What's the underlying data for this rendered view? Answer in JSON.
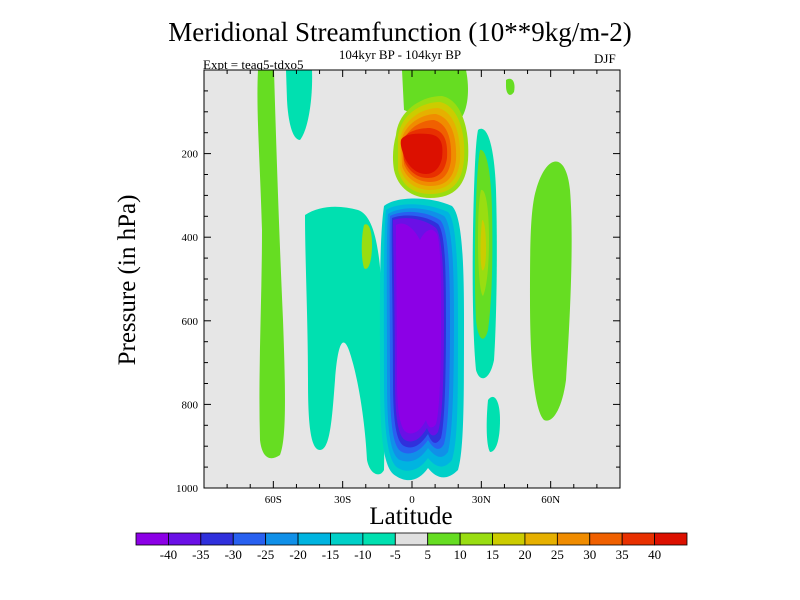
{
  "chart_data": {
    "type": "heatmap",
    "title": "Meridional Streamfunction (10**9kg/m-2)",
    "subtitle": "104kyr BP - 104kyr BP",
    "experiment_label": "Expt = teaq5-tdxo5",
    "season_label": "DJF",
    "xlabel": "Latitude",
    "ylabel": "Pressure (in hPa)",
    "xlim": [
      -90,
      90
    ],
    "ylim": [
      1000,
      0
    ],
    "x_ticks": [
      {
        "value": -60,
        "label": "60S"
      },
      {
        "value": -30,
        "label": "30S"
      },
      {
        "value": 0,
        "label": "0"
      },
      {
        "value": 30,
        "label": "30N"
      },
      {
        "value": 60,
        "label": "60N"
      }
    ],
    "y_ticks": [
      {
        "value": 200,
        "label": "200"
      },
      {
        "value": 400,
        "label": "400"
      },
      {
        "value": 600,
        "label": "600"
      },
      {
        "value": 800,
        "label": "800"
      },
      {
        "value": 1000,
        "label": "1000"
      }
    ],
    "colorbar": {
      "labels": [
        "-40",
        "-35",
        "-30",
        "-25",
        "-20",
        "-15",
        "-10",
        "-5",
        "5",
        "10",
        "15",
        "20",
        "25",
        "30",
        "35",
        "40"
      ],
      "colors": [
        "#8c00e6",
        "#6a10e6",
        "#3030dc",
        "#2860f0",
        "#1090e8",
        "#00b4e0",
        "#00d0c8",
        "#00e0b0",
        "#e0e0e0",
        "#66dd22",
        "#99dd11",
        "#cccc00",
        "#e6b000",
        "#f08c00",
        "#f06000",
        "#e83000",
        "#dc1000"
      ]
    },
    "regions": [
      {
        "name": "mid-high-sh-positive",
        "level": 5,
        "lat_range": [
          -66,
          -54
        ],
        "p_range": [
          0,
          960
        ]
      },
      {
        "name": "sh-subtropical-negative",
        "level": -10,
        "lat_range": [
          -45,
          -5
        ],
        "p_range": [
          280,
          980
        ]
      },
      {
        "name": "tropical-core-negative",
        "level": -40,
        "lat_range": [
          -10,
          12
        ],
        "p_range": [
          300,
          960
        ]
      },
      {
        "name": "upper-tropical-positive",
        "level": 40,
        "lat_range": [
          0,
          18
        ],
        "p_range": [
          160,
          260
        ]
      },
      {
        "name": "nh-subtropical-positive",
        "level": 15,
        "lat_range": [
          26,
          36
        ],
        "p_range": [
          300,
          500
        ]
      },
      {
        "name": "nh-extratropical-positive",
        "level": 5,
        "lat_range": [
          55,
          68
        ],
        "p_range": [
          180,
          900
        ]
      }
    ]
  }
}
